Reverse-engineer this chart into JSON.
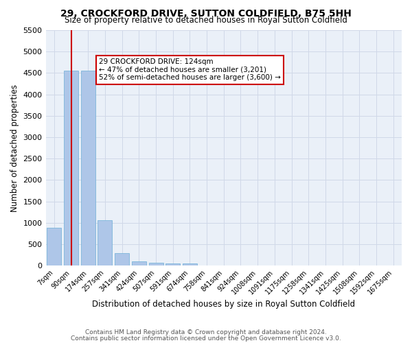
{
  "title1": "29, CROCKFORD DRIVE, SUTTON COLDFIELD, B75 5HH",
  "title2": "Size of property relative to detached houses in Royal Sutton Coldfield",
  "xlabel": "Distribution of detached houses by size in Royal Sutton Coldfield",
  "ylabel": "Number of detached properties",
  "footer1": "Contains HM Land Registry data © Crown copyright and database right 2024.",
  "footer2": "Contains public sector information licensed under the Open Government Licence v3.0.",
  "categories": [
    "7sqm",
    "90sqm",
    "174sqm",
    "257sqm",
    "341sqm",
    "424sqm",
    "507sqm",
    "591sqm",
    "674sqm",
    "758sqm",
    "841sqm",
    "924sqm",
    "1008sqm",
    "1091sqm",
    "1175sqm",
    "1258sqm",
    "1341sqm",
    "1425sqm",
    "1508sqm",
    "1592sqm",
    "1675sqm"
  ],
  "values": [
    880,
    4550,
    4550,
    1060,
    300,
    95,
    65,
    55,
    55,
    0,
    0,
    0,
    0,
    0,
    0,
    0,
    0,
    0,
    0,
    0,
    0
  ],
  "bar_color": "#aec6e8",
  "bar_edge_color": "#6baed6",
  "bar_edge_width": 0.5,
  "property_line_x": 1,
  "property_size": "124sqm",
  "annotation_text": "29 CROCKFORD DRIVE: 124sqm\n← 47% of detached houses are smaller (3,201)\n52% of semi-detached houses are larger (3,600) →",
  "annotation_box_color": "#ffffff",
  "annotation_border_color": "#cc0000",
  "red_line_color": "#cc0000",
  "grid_color": "#d0d8e8",
  "background_color": "#eaf0f8",
  "ylim": [
    0,
    5500
  ],
  "yticks": [
    0,
    500,
    1000,
    1500,
    2000,
    2500,
    3000,
    3500,
    4000,
    4500,
    5000,
    5500
  ]
}
